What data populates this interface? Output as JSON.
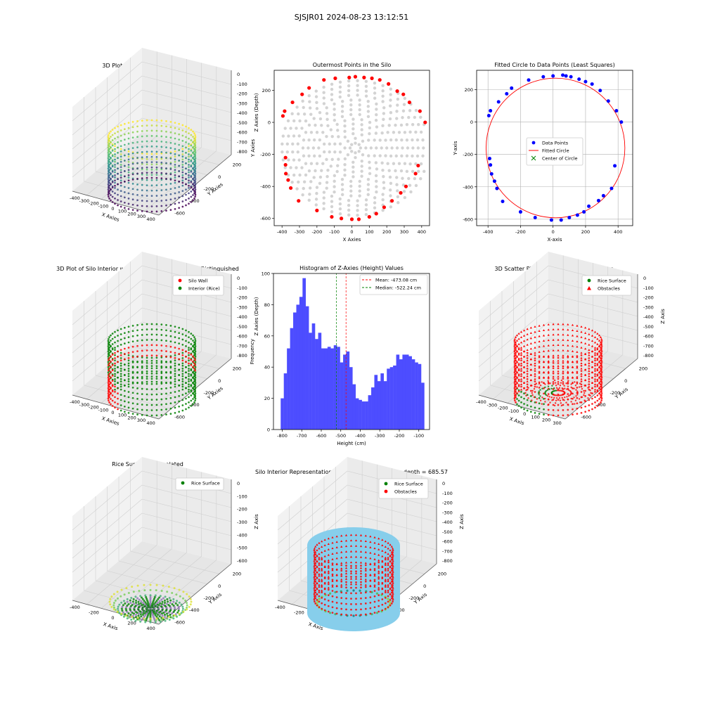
{
  "suptitle": "SJSJR01 2024-08-23 13:12:51",
  "colors": {
    "red": "#ff0000",
    "blue": "#0000ff",
    "green": "#008000",
    "gray": "#d3d3d3",
    "hist": "#4d4dff",
    "skyblue": "#87ceeb",
    "axes": "#000000"
  },
  "chart_data": [
    {
      "id": "p1",
      "type": "scatter3d",
      "title": "3D Plot of Silo Interior(row data)",
      "xlabel": "X Axies",
      "ylabel": "Y Axies",
      "zlabel": "Z Axies (Depth)",
      "x_ticks": [
        "-400",
        "-300",
        "-200",
        "-100",
        "0",
        "100",
        "200",
        "300",
        "400"
      ],
      "y_ticks": [
        "-600",
        "-400",
        "-200",
        "0",
        "200"
      ],
      "z_ticks": [
        "0",
        "-100",
        "-200",
        "-300",
        "-400",
        "-500",
        "-600",
        "-700",
        "-800"
      ],
      "colormap": "viridis"
    },
    {
      "id": "p2",
      "type": "scatter",
      "title": "Outermost Points in the Silo",
      "xlabel": "X Axies",
      "ylabel": "Y Axies",
      "x_ticks": [
        -400,
        -300,
        -200,
        -100,
        0,
        100,
        200,
        300,
        400
      ],
      "y_ticks": [
        200,
        0,
        -200,
        -400,
        -600
      ],
      "xlim": [
        -445,
        445
      ],
      "ylim": [
        -645,
        325
      ],
      "center": [
        20,
        -160
      ],
      "radii": [
        30,
        60,
        90,
        120,
        150,
        180,
        210,
        240,
        270,
        300,
        330,
        360,
        390,
        420
      ],
      "series": [
        {
          "values_x": [
            -395,
            -385,
            -380,
            -380,
            -378,
            -365,
            -350,
            -340,
            -305,
            -285,
            -245,
            -200,
            -160,
            -115,
            -95,
            -60,
            -15,
            0,
            20,
            40,
            70,
            100,
            115,
            140,
            160,
            185,
            210,
            230,
            260,
            280,
            295,
            310,
            330,
            365,
            380,
            390,
            420
          ],
          "values_y": [
            40,
            70,
            -220,
            -265,
            -320,
            -360,
            -410,
            125,
            -490,
            175,
            215,
            -550,
            265,
            -590,
            275,
            -600,
            280,
            -605,
            285,
            -605,
            280,
            -590,
            275,
            -570,
            265,
            -530,
            240,
            -490,
            195,
            -440,
            175,
            -400,
            125,
            -320,
            -270,
            70,
            0
          ]
        }
      ]
    },
    {
      "id": "p3",
      "type": "scatter",
      "title": "Fitted Circle to Data Points (Least Squares)",
      "xlabel": "X-axis",
      "ylabel": "Y-axis",
      "x_ticks": [
        -400,
        -200,
        0,
        200,
        400
      ],
      "y_ticks": [
        200,
        0,
        -200,
        -400,
        -600
      ],
      "xlim": [
        -470,
        490
      ],
      "ylim": [
        -640,
        320
      ],
      "circle": {
        "cx": 15,
        "cy": -160,
        "r": 440
      },
      "legend": [
        "Data Points",
        "Fitted Circle",
        "Center of Circle"
      ],
      "grid": true,
      "series": [
        {
          "values_x": [
            -395,
            -385,
            -390,
            -385,
            -378,
            -360,
            -345,
            -335,
            -310,
            -285,
            -255,
            -200,
            -150,
            -110,
            -60,
            -10,
            0,
            50,
            60,
            80,
            100,
            110,
            150,
            160,
            190,
            200,
            220,
            240,
            280,
            290,
            310,
            340,
            360,
            380,
            390,
            420
          ],
          "values_y": [
            40,
            70,
            -225,
            -265,
            -320,
            -365,
            -410,
            125,
            -490,
            175,
            210,
            -555,
            260,
            -590,
            280,
            -605,
            285,
            -605,
            290,
            285,
            -590,
            280,
            -575,
            265,
            -555,
            250,
            -520,
            235,
            -485,
            195,
            -455,
            130,
            -410,
            -270,
            70,
            0
          ]
        }
      ]
    },
    {
      "id": "p4",
      "type": "scatter3d",
      "title": "3D Plot of Silo Interior with Wall and Interior Points Distinguished",
      "xlabel": "X Axies",
      "ylabel": "Y Axies",
      "zlabel": "Z Axies (Depth)",
      "x_ticks": [
        "-400",
        "-300",
        "-200",
        "-100",
        "0",
        "100",
        "200",
        "300",
        "400"
      ],
      "y_ticks": [
        "-600",
        "-400",
        "-200",
        "0",
        "200"
      ],
      "z_ticks": [
        "0",
        "-100",
        "-200",
        "-300",
        "-400",
        "-500",
        "-600",
        "-700",
        "-800"
      ],
      "legend": [
        "Silo Wall",
        "Interior (Rice)"
      ]
    },
    {
      "id": "p5",
      "type": "bar",
      "title": "Histogram of Z-Axies (Height) Values",
      "xlabel": "Height (cm)",
      "ylabel": "Frequency",
      "x_ticks": [
        -800,
        -700,
        -600,
        -500,
        -400,
        -300,
        -200,
        -100
      ],
      "y_ticks": [
        0,
        20,
        40,
        60,
        80,
        100
      ],
      "xlim": [
        -845,
        -45
      ],
      "ylim": [
        0,
        100
      ],
      "bin_start": -808,
      "bin_width": 16,
      "values": [
        20,
        36,
        52,
        65,
        75,
        80,
        85,
        97,
        79,
        62,
        68,
        58,
        62,
        52,
        52,
        53,
        52,
        54,
        53,
        43,
        48,
        50,
        40,
        29,
        20,
        19,
        18,
        18,
        22,
        27,
        35,
        31,
        36,
        31,
        39,
        40,
        41,
        48,
        45,
        48,
        48,
        47,
        45,
        43,
        42,
        30
      ],
      "mean": -473.08,
      "median": -522.24,
      "legend": [
        "Mean: -473.08 cm",
        "Median: -522.24 cm"
      ]
    },
    {
      "id": "p6",
      "type": "scatter3d",
      "title": "3D Scatter Plot: Rice Surface vs Obstacles",
      "xlabel": "X Axis",
      "ylabel": "Y Axis",
      "zlabel": "Z Axis",
      "x_ticks": [
        "-400",
        "-300",
        "-200",
        "-100",
        "0",
        "100",
        "200",
        "300"
      ],
      "y_ticks": [
        "-600",
        "-400",
        "-200",
        "0",
        "200"
      ],
      "z_ticks": [
        "0",
        "-100",
        "-200",
        "-300",
        "-400",
        "-500",
        "-600",
        "-700",
        "-800"
      ],
      "legend": [
        "Rice Surface",
        "Obstacles"
      ]
    },
    {
      "id": "p7",
      "type": "surface3d",
      "title": "Rice Surface Interpolated",
      "subtitle": "depth = 685.57",
      "xlabel": "X Axis",
      "ylabel": "Y Axis",
      "zlabel": "Z Axis",
      "x_ticks": [
        "-400",
        "-200",
        "0",
        "200",
        "400"
      ],
      "y_ticks": [
        "-600",
        "-400",
        "-200",
        "0",
        "200"
      ],
      "z_ticks": [
        "0",
        "-100",
        "-200",
        "-300",
        "-400",
        "-500",
        "-600"
      ],
      "legend": [
        "Rice Surface"
      ]
    },
    {
      "id": "p8",
      "type": "scatter3d",
      "title": "Silo Interior Representation using weighted average depth = 685.57",
      "xlabel": "X Axis",
      "ylabel": "Y Axis",
      "zlabel": "Z Axis",
      "x_ticks": [
        "-400",
        "-200",
        "0",
        "200",
        "400"
      ],
      "y_ticks": [
        "-600",
        "-400",
        "-200",
        "0",
        "200"
      ],
      "z_ticks": [
        "0",
        "-100",
        "-200",
        "-300",
        "-400",
        "-500",
        "-600",
        "-700",
        "-800"
      ],
      "legend": [
        "Rice Surface",
        "Obstacles"
      ]
    }
  ]
}
